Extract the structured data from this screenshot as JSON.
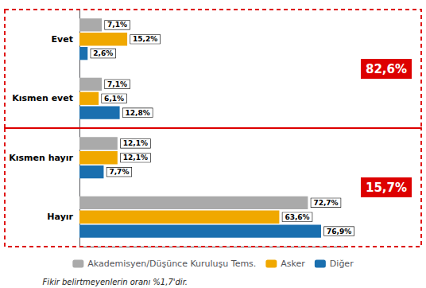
{
  "chart_data": {
    "type": "bar",
    "orientation": "horizontal",
    "categories": [
      "Evet",
      "Kısmen evet",
      "Kısmen hayır",
      "Hayır"
    ],
    "series": [
      {
        "name": "Akademisyen/Düşünce Kuruluşu Tems.",
        "color": "#aaaaaa",
        "values": [
          7.1,
          7.1,
          12.1,
          72.7
        ],
        "value_labels": [
          "7,1%",
          "7,1%",
          "12,1%",
          "72,7%"
        ]
      },
      {
        "name": "Asker",
        "color": "#f0a800",
        "values": [
          15.2,
          6.1,
          12.1,
          63.6
        ],
        "value_labels": [
          "15,2%",
          "6,1%",
          "12,1%",
          "63,6%"
        ]
      },
      {
        "name": "Diğer",
        "color": "#1a6faf",
        "values": [
          2.6,
          12.8,
          7.7,
          76.9
        ],
        "value_labels": [
          "2,6%",
          "12,8%",
          "7,7%",
          "76,9%"
        ]
      }
    ],
    "xlim": [
      0,
      85
    ],
    "data_labels": true,
    "tick_labels": "y",
    "grid": false,
    "legend": "bottom",
    "annotations": [
      {
        "text": "82,6%",
        "color": "#dd0000"
      },
      {
        "text": "15,7%",
        "color": "#dd0000"
      }
    ],
    "footnote": "Fikir belirtmeyenlerin oranı %1,7'dir."
  }
}
